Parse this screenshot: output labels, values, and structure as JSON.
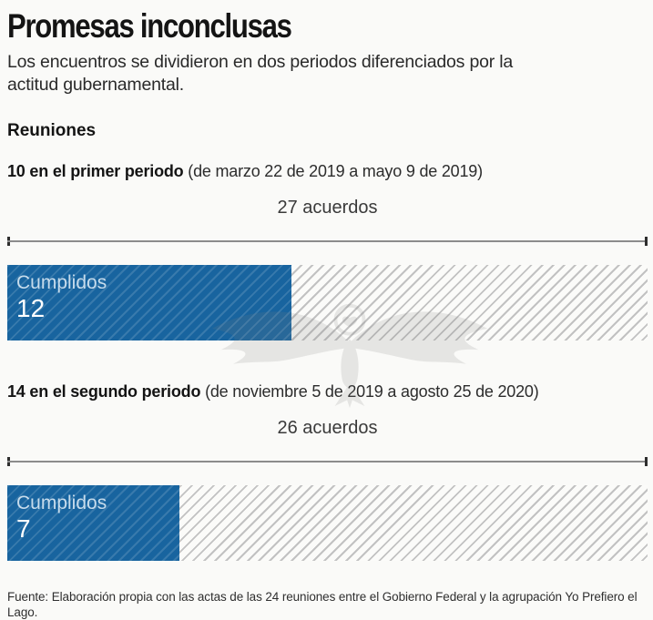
{
  "header": {
    "title": "Promesas inconclusas",
    "subtitle": "Los encuentros se dividieron en dos periodos diferenciados por la actitud gubernamental.",
    "section_heading": "Reuniones"
  },
  "colors": {
    "bar_fill_blue": "#18649f",
    "hatch_gray": "#c2c2c2",
    "background": "#fafaf8"
  },
  "chart_data": {
    "type": "bar",
    "unit": "acuerdos",
    "groups": [
      {
        "period_bold": "10 en el primer periodo",
        "period_detail": "(de marzo 22 de 2019 a mayo 9 de 2019)",
        "total": 27,
        "total_label": "27 acuerdos",
        "fulfilled": 12,
        "fulfilled_label": "Cumplidos",
        "fulfilled_value": "12"
      },
      {
        "period_bold": "14 en el segundo periodo",
        "period_detail": "(de noviembre 5 de 2019 a agosto 25 de 2020)",
        "total": 26,
        "total_label": "26 acuerdos",
        "fulfilled": 7,
        "fulfilled_label": "Cumplidos",
        "fulfilled_value": "7"
      }
    ]
  },
  "footer": {
    "source": "Fuente: Elaboración propia con las actas de las 24 reuniones entre el Gobierno Federal y la agrupación Yo Prefiero el Lago."
  },
  "watermark": {
    "icon": "eagle-emblem"
  }
}
